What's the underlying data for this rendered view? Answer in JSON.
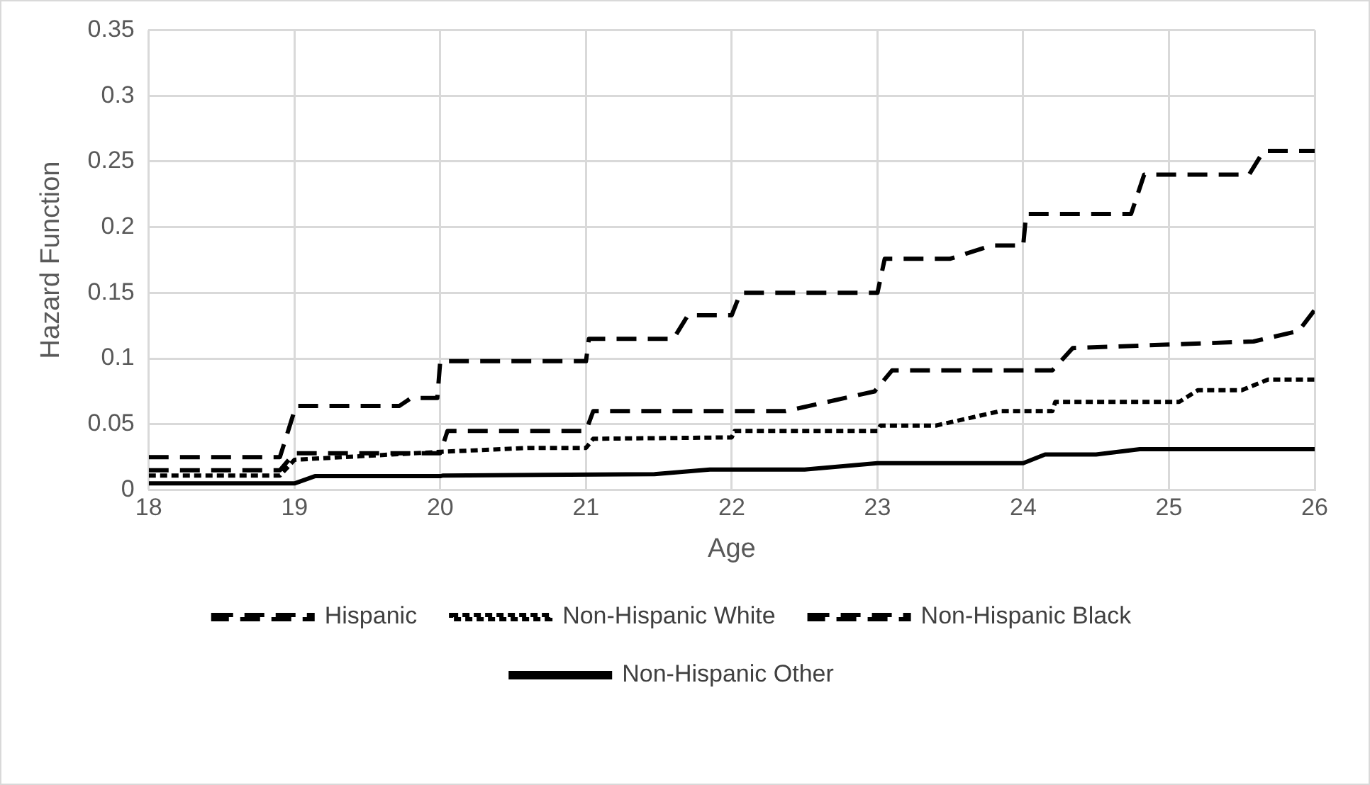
{
  "chart_data": {
    "type": "line",
    "xlabel": "Age",
    "ylabel": "Hazard Function",
    "xlim": [
      18,
      26
    ],
    "xticks": [
      18,
      19,
      20,
      21,
      22,
      23,
      24,
      25,
      26
    ],
    "ylim": [
      0,
      0.35
    ],
    "yticks": [
      0,
      0.05,
      0.1,
      0.15,
      0.2,
      0.25,
      0.3,
      0.35
    ],
    "grid": true,
    "legend": "bottom",
    "marker": "none",
    "series": [
      {
        "name": "Hispanic",
        "color": "#000000",
        "line_style": "dashed",
        "x": [
          18,
          18.9,
          19.0,
          20.0,
          20.05,
          21.0,
          21.05,
          22.37,
          22.98,
          23.1,
          24.2,
          24.34,
          25.58,
          25.89,
          26
        ],
        "values": [
          0.015,
          0.015,
          0.028,
          0.028,
          0.045,
          0.045,
          0.06,
          0.06,
          0.075,
          0.091,
          0.091,
          0.108,
          0.113,
          0.121,
          0.137
        ]
      },
      {
        "name": "Non-Hispanic White",
        "color": "#000000",
        "line_style": "dotted",
        "x": [
          18,
          18.9,
          19.0,
          20.0,
          20.6,
          21.0,
          21.05,
          22.0,
          22.02,
          23.0,
          23.02,
          23.4,
          23.84,
          24.2,
          24.22,
          25.07,
          25.2,
          25.5,
          25.68,
          26
        ],
        "values": [
          0.011,
          0.011,
          0.023,
          0.029,
          0.032,
          0.032,
          0.039,
          0.04,
          0.045,
          0.045,
          0.049,
          0.049,
          0.06,
          0.06,
          0.067,
          0.067,
          0.076,
          0.076,
          0.084,
          0.084
        ]
      },
      {
        "name": "Non-Hispanic Black",
        "color": "#000000",
        "line_style": "dashed",
        "x": [
          18,
          18.9,
          19.01,
          19.72,
          19.8,
          19.98,
          20.0,
          21.0,
          21.02,
          21.6,
          21.7,
          22.0,
          22.06,
          23.0,
          23.05,
          23.5,
          23.78,
          24.0,
          24.02,
          24.74,
          24.83,
          25.55,
          25.65,
          26
        ],
        "values": [
          0.025,
          0.025,
          0.064,
          0.064,
          0.07,
          0.07,
          0.098,
          0.098,
          0.115,
          0.115,
          0.133,
          0.133,
          0.15,
          0.15,
          0.176,
          0.176,
          0.186,
          0.186,
          0.21,
          0.21,
          0.24,
          0.24,
          0.258,
          0.258
        ]
      },
      {
        "name": "Non-Hispanic Other",
        "color": "#000000",
        "line_style": "solid",
        "x": [
          18,
          19.0,
          19.14,
          20.0,
          20.02,
          21.47,
          21.85,
          22.5,
          23.0,
          24.0,
          24.15,
          24.5,
          24.8,
          26
        ],
        "values": [
          0.005,
          0.005,
          0.0105,
          0.0105,
          0.011,
          0.012,
          0.0155,
          0.0155,
          0.0204,
          0.0204,
          0.027,
          0.027,
          0.031,
          0.031
        ]
      }
    ]
  }
}
